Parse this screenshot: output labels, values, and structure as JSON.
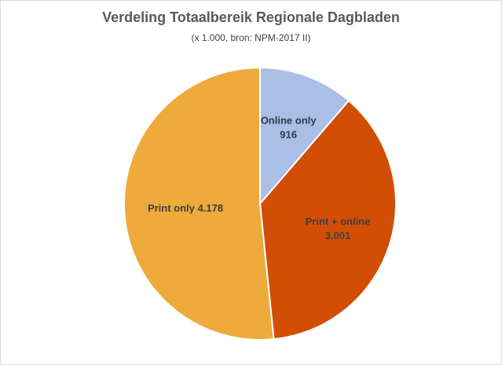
{
  "chart_data": {
    "type": "pie",
    "title": "Verdeling Totaalbereik Regionale Dagbladen",
    "subtitle": "(x 1.000, bron:  NPM-2017 II)",
    "categories": [
      "Online only",
      "Print + online",
      "Print only"
    ],
    "values": [
      916,
      3001,
      4178
    ],
    "value_labels": [
      "916",
      "3.001",
      "4.178"
    ],
    "colors": [
      "#a9bfe6",
      "#d24e04",
      "#eeaa3b"
    ],
    "label_colors": [
      "#2e3a4f",
      "#404040",
      "#404040"
    ],
    "start_angle": "12 o'clock",
    "direction": "clockwise",
    "legend": "none"
  }
}
